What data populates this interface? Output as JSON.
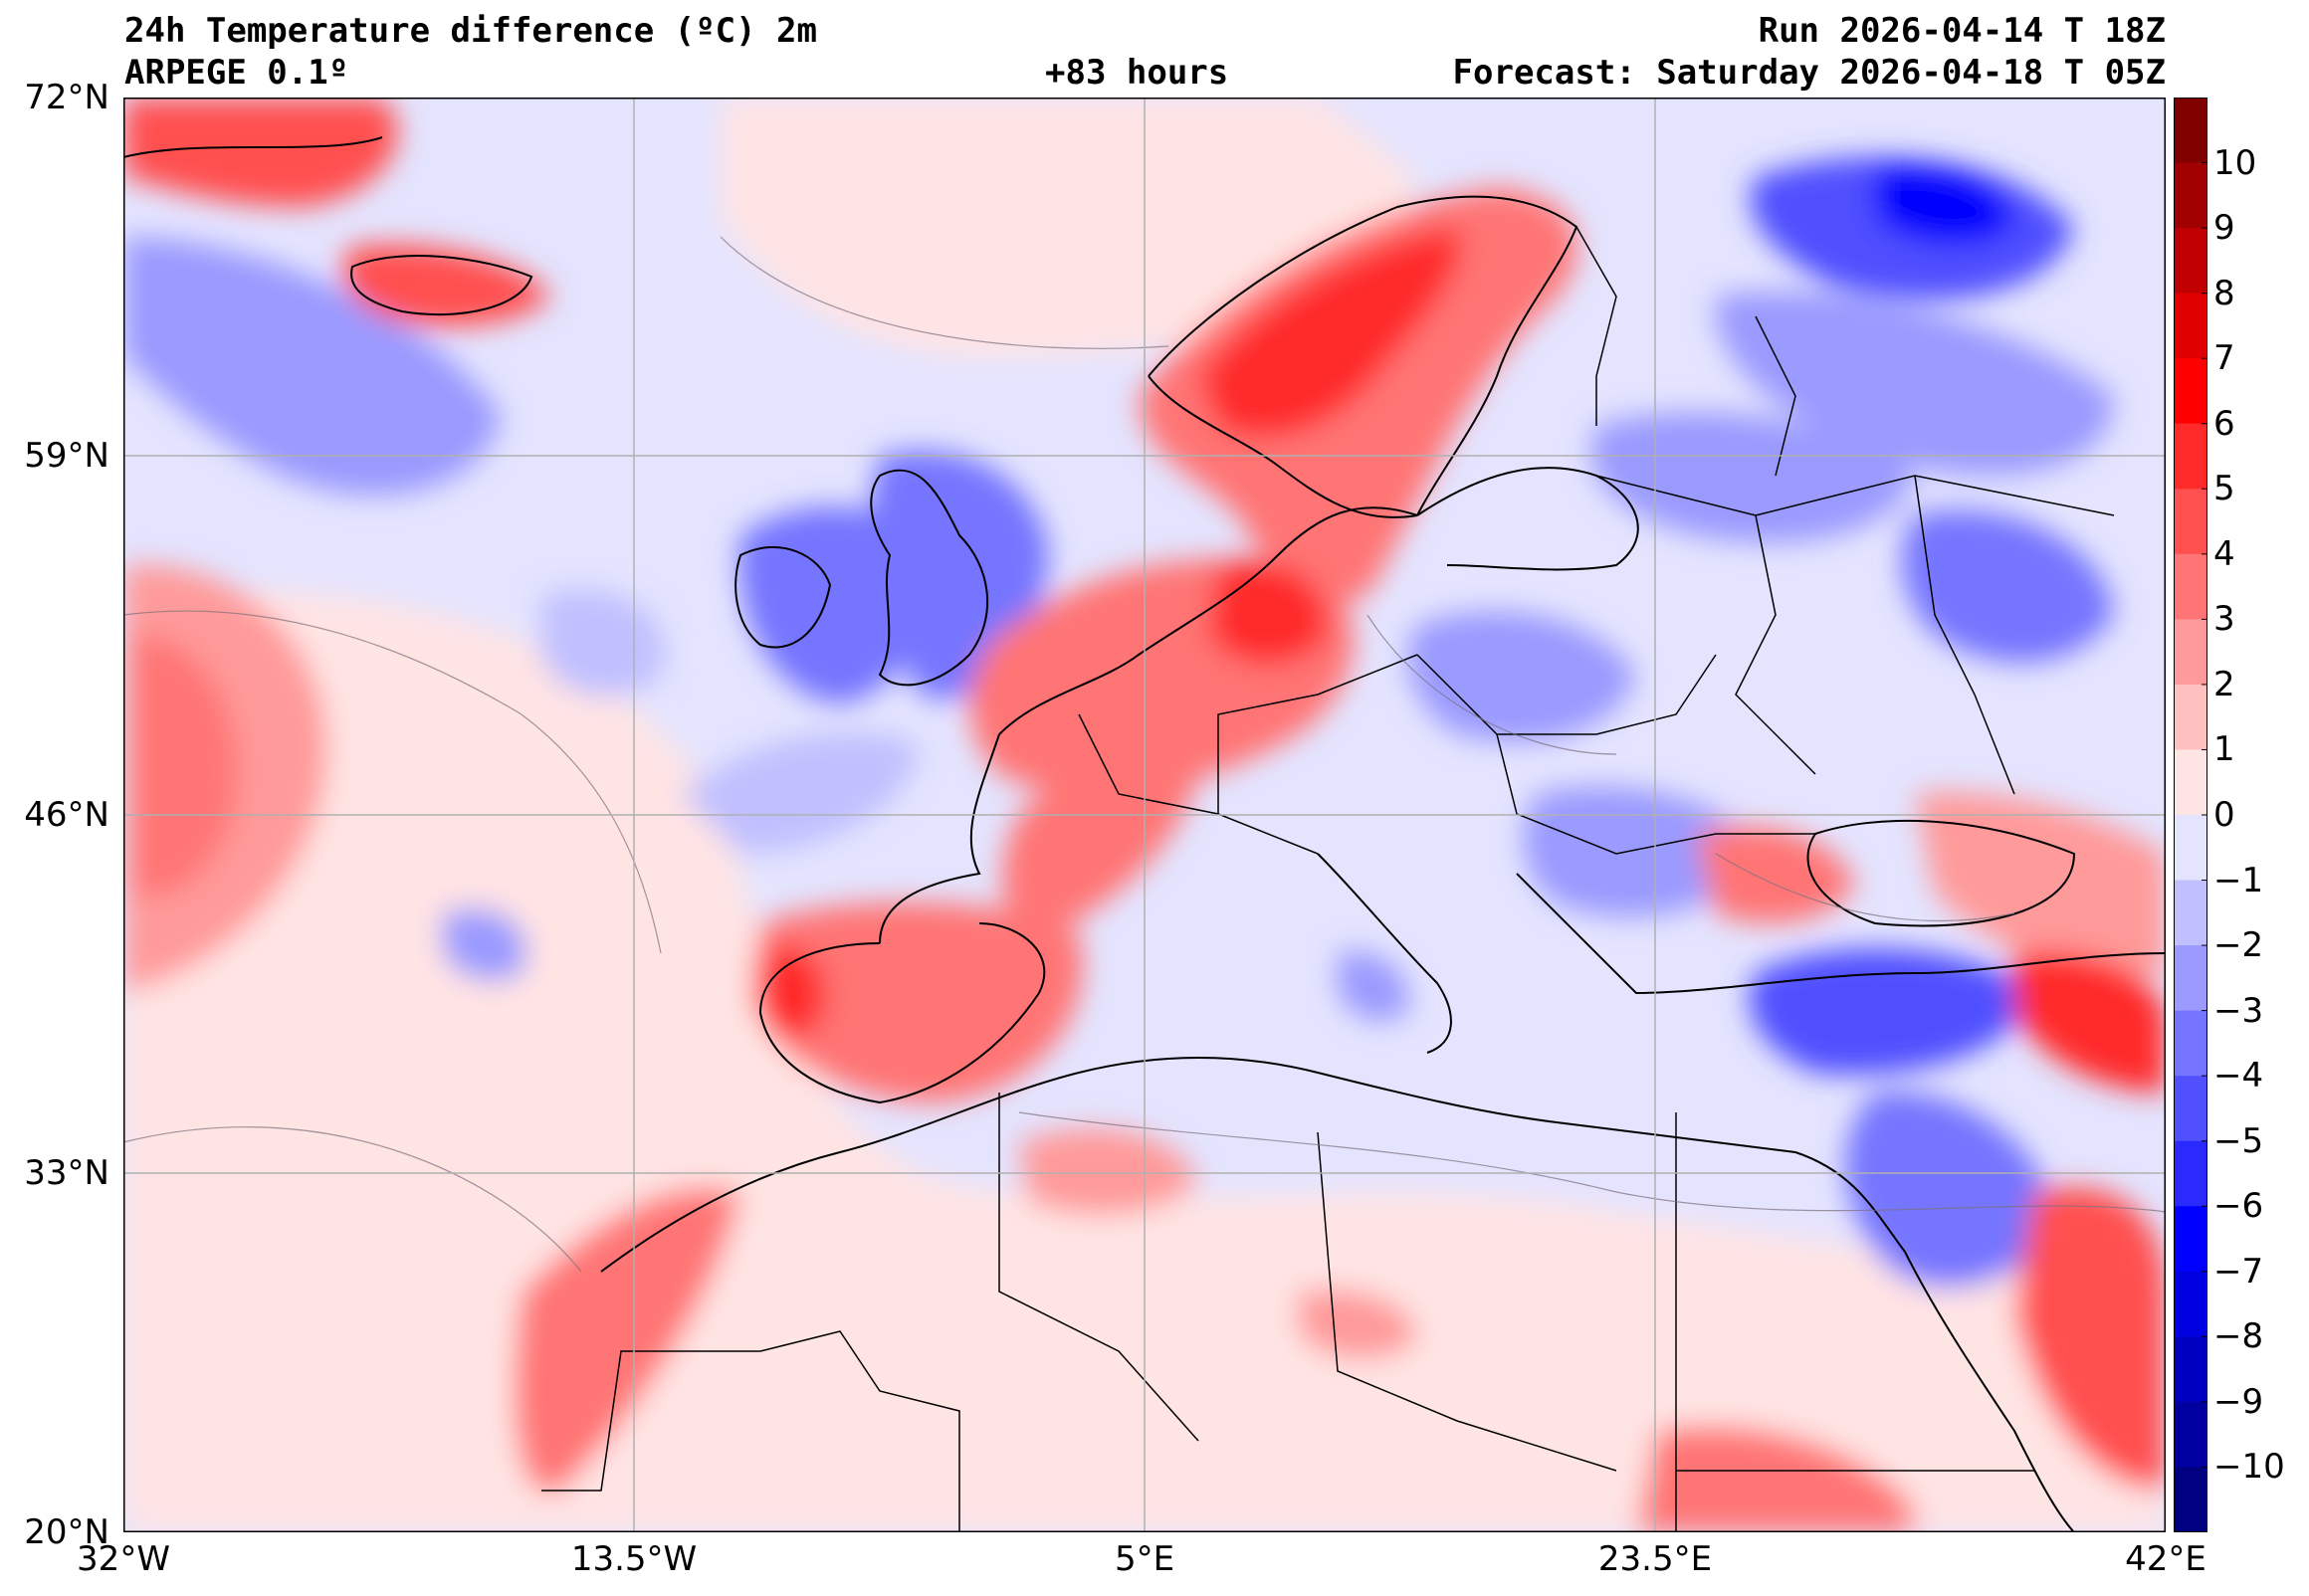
{
  "header": {
    "title_line1": "24h Temperature difference (ºC) 2m",
    "model": "ARPEGE 0.1º",
    "lead_time": "+83 hours",
    "run": "Run 2026-04-14 T 18Z",
    "forecast": "Forecast: Saturday 2026-04-18 T 05Z"
  },
  "map": {
    "lat_labels": [
      "72°N",
      "59°N",
      "46°N",
      "33°N",
      "20°N"
    ],
    "lon_labels": [
      "32°W",
      "13.5°W",
      "5°E",
      "23.5°E",
      "42°E"
    ],
    "extent": {
      "lon_min": -32,
      "lon_max": 42,
      "lat_min": 20,
      "lat_max": 72
    }
  },
  "colorbar": {
    "tick_labels": [
      "10",
      "9",
      "8",
      "7",
      "6",
      "5",
      "4",
      "3",
      "2",
      "1",
      "0",
      "−1",
      "−2",
      "−3",
      "−4",
      "−5",
      "−6",
      "−7",
      "−8",
      "−9",
      "−10"
    ],
    "colors": [
      "#800000",
      "#a00000",
      "#c00000",
      "#e00000",
      "#ff0000",
      "#ff2a2a",
      "#ff5050",
      "#ff7575",
      "#ff9a9a",
      "#ffc0c0",
      "#ffe4e4",
      "#e4e4ff",
      "#c0c0ff",
      "#9a9aff",
      "#7575ff",
      "#5050ff",
      "#2a2aff",
      "#0000ff",
      "#0000e0",
      "#0000c0",
      "#0000a0",
      "#000080"
    ]
  }
}
